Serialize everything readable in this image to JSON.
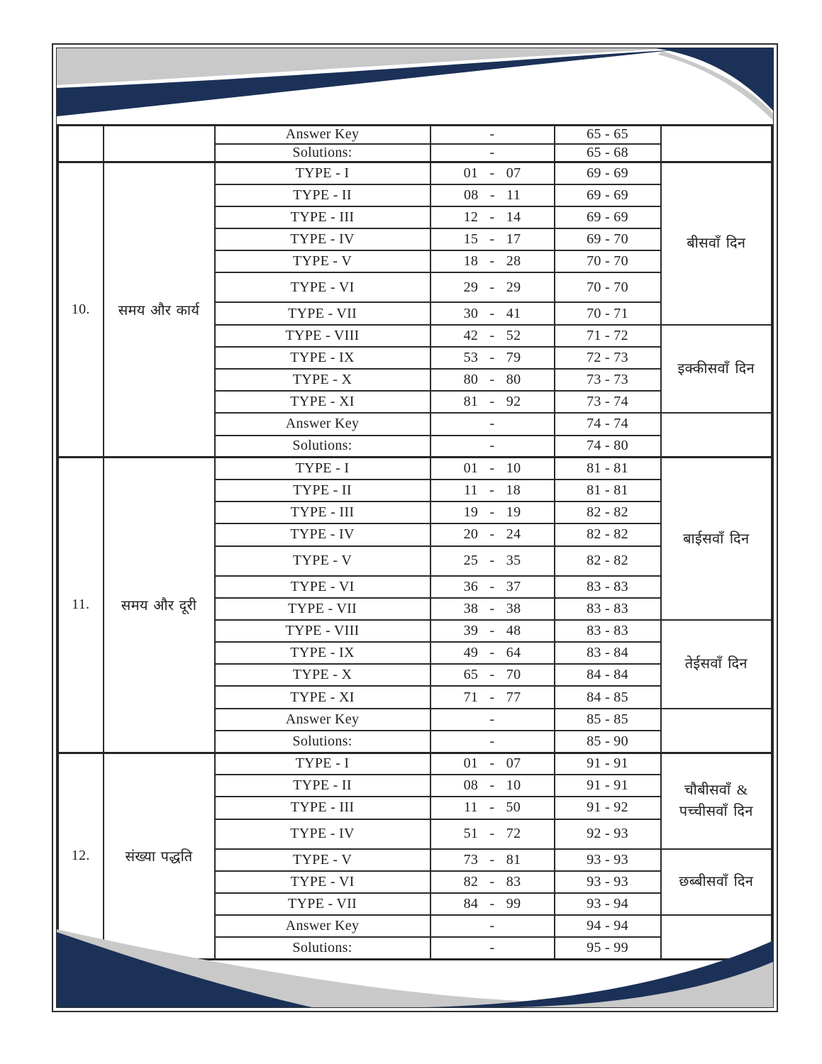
{
  "colors": {
    "navy": "#1b3157",
    "gray": "#c9c9c9",
    "line": "#2b2b2b",
    "text": "#1f1f1f"
  },
  "table": {
    "sections": [
      {
        "number": "",
        "chapter": "",
        "day_spans": [
          {
            "label": "",
            "rows": 2
          }
        ],
        "rows": [
          {
            "type": "Answer Key",
            "q": "-",
            "pages": "65 - 65"
          },
          {
            "type": "Solutions:",
            "q": "-",
            "pages": "65 - 68"
          }
        ]
      },
      {
        "number": "10.",
        "chapter": "समय और कार्य",
        "day_spans": [
          {
            "label": "बीसवाँ दिन",
            "rows": 7
          },
          {
            "label": "इक्कीसवाँ दिन",
            "rows": 4
          },
          {
            "label": "",
            "rows": 2
          }
        ],
        "rows": [
          {
            "type": "TYPE - I",
            "q": "01 - 07",
            "pages": "69 - 69"
          },
          {
            "type": "TYPE - II",
            "q": "08 - 11",
            "pages": "69 - 69"
          },
          {
            "type": "TYPE - III",
            "q": "12 - 14",
            "pages": "69 - 69"
          },
          {
            "type": "TYPE - IV",
            "q": "15 - 17",
            "pages": "69 - 70"
          },
          {
            "type": "TYPE - V",
            "q": "18 - 28",
            "pages": "70 - 70"
          },
          {
            "type": "TYPE - VI",
            "q": "29 - 29",
            "pages": "70 - 70"
          },
          {
            "type": "TYPE - VII",
            "q": "30 - 41",
            "pages": "70 - 71"
          },
          {
            "type": "TYPE - VIII",
            "q": "42 - 52",
            "pages": "71 - 72"
          },
          {
            "type": "TYPE - IX",
            "q": "53 - 79",
            "pages": "72 - 73"
          },
          {
            "type": "TYPE - X",
            "q": "80 - 80",
            "pages": "73 - 73"
          },
          {
            "type": "TYPE - XI",
            "q": "81 - 92",
            "pages": "73 - 74"
          },
          {
            "type": "Answer Key",
            "q": "-",
            "pages": "74 - 74"
          },
          {
            "type": "Solutions:",
            "q": "-",
            "pages": "74 - 80"
          }
        ]
      },
      {
        "number": "11.",
        "chapter": "समय और दूरी",
        "day_spans": [
          {
            "label": "बाईसवाँ दिन",
            "rows": 7
          },
          {
            "label": "तेईसवाँ दिन",
            "rows": 4
          },
          {
            "label": "",
            "rows": 2
          }
        ],
        "rows": [
          {
            "type": "TYPE - I",
            "q": "01 - 10",
            "pages": "81 - 81"
          },
          {
            "type": "TYPE - II",
            "q": "11 - 18",
            "pages": "81 - 81"
          },
          {
            "type": "TYPE - III",
            "q": "19 - 19",
            "pages": "82 - 82"
          },
          {
            "type": "TYPE - IV",
            "q": "20 - 24",
            "pages": "82 - 82"
          },
          {
            "type": "TYPE - V",
            "q": "25 - 35",
            "pages": "82 - 82"
          },
          {
            "type": "TYPE - VI",
            "q": "36 - 37",
            "pages": "83 - 83"
          },
          {
            "type": "TYPE - VII",
            "q": "38 - 38",
            "pages": "83 - 83"
          },
          {
            "type": "TYPE - VIII",
            "q": "39 - 48",
            "pages": "83 - 83"
          },
          {
            "type": "TYPE - IX",
            "q": "49 - 64",
            "pages": "83 - 84"
          },
          {
            "type": "TYPE - X",
            "q": "65 - 70",
            "pages": "84 - 84"
          },
          {
            "type": "TYPE - XI",
            "q": "71 - 77",
            "pages": "84 - 85"
          },
          {
            "type": "Answer Key",
            "q": "-",
            "pages": "85 - 85"
          },
          {
            "type": "Solutions:",
            "q": "-",
            "pages": "85 - 90"
          }
        ]
      },
      {
        "number": "12.",
        "chapter": "संख्या पद्धति",
        "day_spans": [
          {
            "label": "चौबीसवाँ &\nपच्चीसवाँ  दिन",
            "rows": 4
          },
          {
            "label": "छब्बीसवाँ दिन",
            "rows": 3
          },
          {
            "label": "",
            "rows": 2
          }
        ],
        "rows": [
          {
            "type": "TYPE - I",
            "q": "01 - 07",
            "pages": "91 - 91"
          },
          {
            "type": "TYPE - II",
            "q": "08 - 10",
            "pages": "91 - 91"
          },
          {
            "type": "TYPE - III",
            "q": "11 - 50",
            "pages": "91 - 92"
          },
          {
            "type": "TYPE - IV",
            "q": "51 - 72",
            "pages": "92 - 93"
          },
          {
            "type": "TYPE - V",
            "q": "73 - 81",
            "pages": "93 - 93"
          },
          {
            "type": "TYPE - VI",
            "q": "82 - 83",
            "pages": "93 - 93"
          },
          {
            "type": "TYPE - VII",
            "q": "84 - 99",
            "pages": "93 - 94"
          },
          {
            "type": "Answer Key",
            "q": "-",
            "pages": "94 - 94"
          },
          {
            "type": "Solutions:",
            "q": "-",
            "pages": "95 - 99"
          }
        ]
      }
    ]
  }
}
